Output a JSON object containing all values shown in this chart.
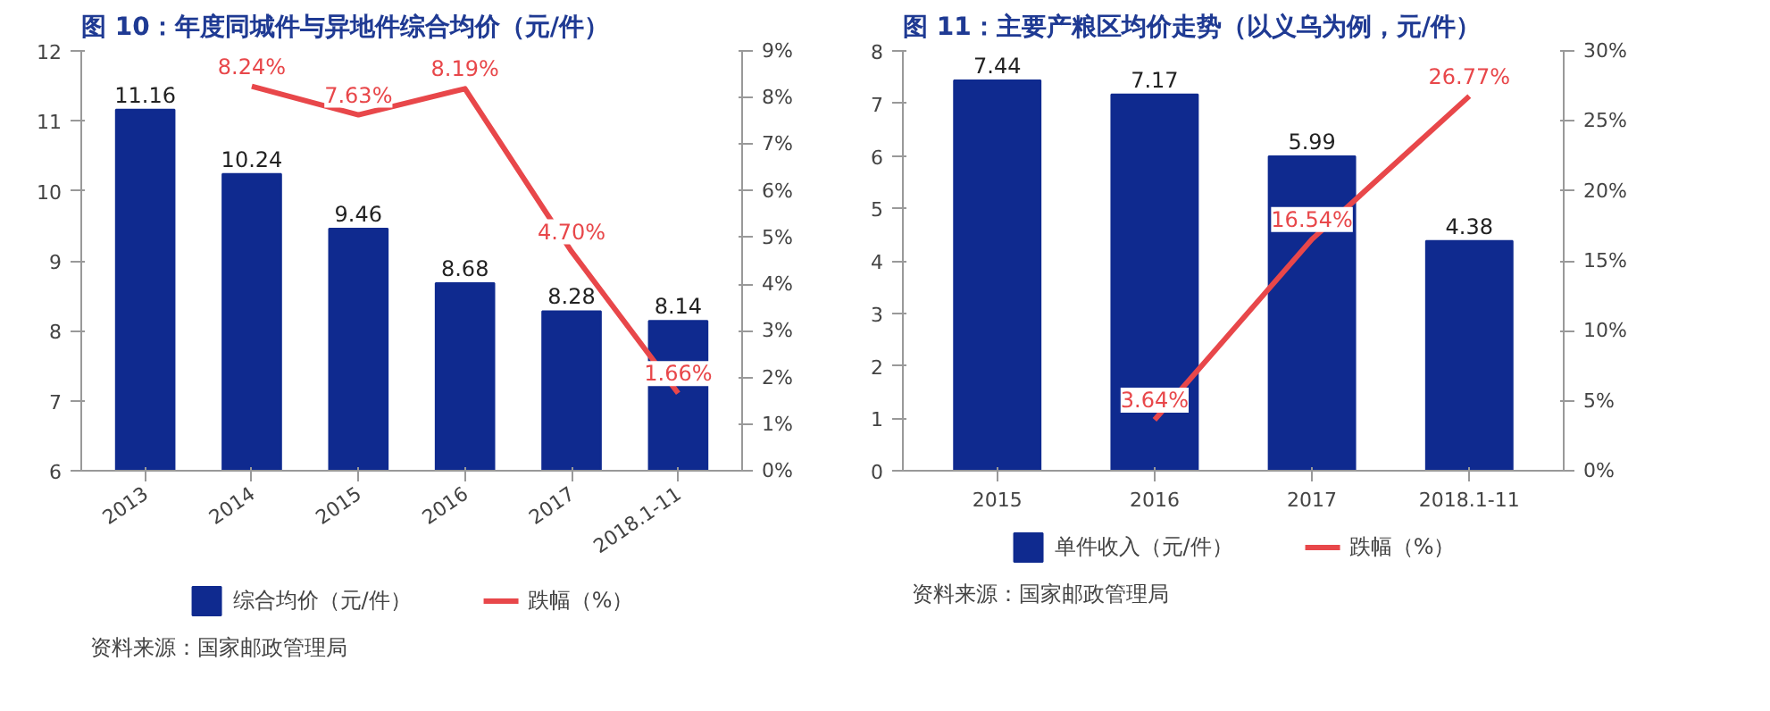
{
  "chart_data": [
    {
      "type": "bar",
      "title": "图 10：年度同城件与异地件综合均价（元/件）",
      "categories": [
        "2013",
        "2014",
        "2015",
        "2016",
        "2017",
        "2018.1-11"
      ],
      "ylim": [
        6,
        12
      ],
      "yticks": [
        6,
        7,
        8,
        9,
        10,
        11,
        12
      ],
      "y2lim": [
        0,
        9
      ],
      "y2ticks": [
        {
          "value": 0,
          "label": "0%"
        },
        {
          "value": 1,
          "label": "1%"
        },
        {
          "value": 2,
          "label": "2%"
        },
        {
          "value": 3,
          "label": "3%"
        },
        {
          "value": 4,
          "label": "4%"
        },
        {
          "value": 5,
          "label": "5%"
        },
        {
          "value": 6,
          "label": "6%"
        },
        {
          "value": 7,
          "label": "7%"
        },
        {
          "value": 8,
          "label": "8%"
        },
        {
          "value": 9,
          "label": "9%"
        }
      ],
      "grid": false,
      "legend": "bottom",
      "annotations": [
        "资料来源：国家邮政管理局"
      ],
      "series": [
        {
          "name": "综合均价（元/件）",
          "color": "#0f2a8f",
          "values": [
            11.16,
            10.24,
            9.46,
            8.68,
            8.28,
            8.14
          ],
          "value_labels": [
            "11.16",
            "10.24",
            "9.46",
            "8.68",
            "8.28",
            "8.14"
          ]
        },
        {
          "name": "跌幅（%）",
          "type": "line",
          "axis": "y2",
          "color": "#e8474a",
          "values": [
            null,
            8.24,
            7.63,
            8.19,
            4.7,
            1.66
          ],
          "value_labels": [
            null,
            "8.24%",
            "7.63%",
            "8.19%",
            "4.70%",
            "1.66%"
          ]
        }
      ]
    },
    {
      "type": "bar",
      "title": "图 11：主要产粮区均价走势（以义乌为例，元/件）",
      "categories": [
        "2015",
        "2016",
        "2017",
        "2018.1-11"
      ],
      "ylim": [
        0,
        8
      ],
      "yticks": [
        0,
        1,
        2,
        3,
        4,
        5,
        6,
        7,
        8
      ],
      "y2lim": [
        0,
        30
      ],
      "y2ticks": [
        {
          "value": 0,
          "label": "0%"
        },
        {
          "value": 5,
          "label": "5%"
        },
        {
          "value": 10,
          "label": "10%"
        },
        {
          "value": 15,
          "label": "15%"
        },
        {
          "value": 20,
          "label": "20%"
        },
        {
          "value": 25,
          "label": "25%"
        },
        {
          "value": 30,
          "label": "30%"
        }
      ],
      "grid": false,
      "legend": "bottom",
      "annotations": [
        "资料来源：国家邮政管理局"
      ],
      "series": [
        {
          "name": "单件收入（元/件）",
          "color": "#0f2a8f",
          "values": [
            7.44,
            7.17,
            5.99,
            4.38
          ],
          "value_labels": [
            "7.44",
            "7.17",
            "5.99",
            "4.38"
          ]
        },
        {
          "name": "跌幅（%）",
          "type": "line",
          "axis": "y2",
          "color": "#e8474a",
          "values": [
            null,
            3.64,
            16.54,
            26.77
          ],
          "value_labels": [
            null,
            "3.64%",
            "16.54%",
            "26.77%"
          ]
        }
      ]
    }
  ]
}
